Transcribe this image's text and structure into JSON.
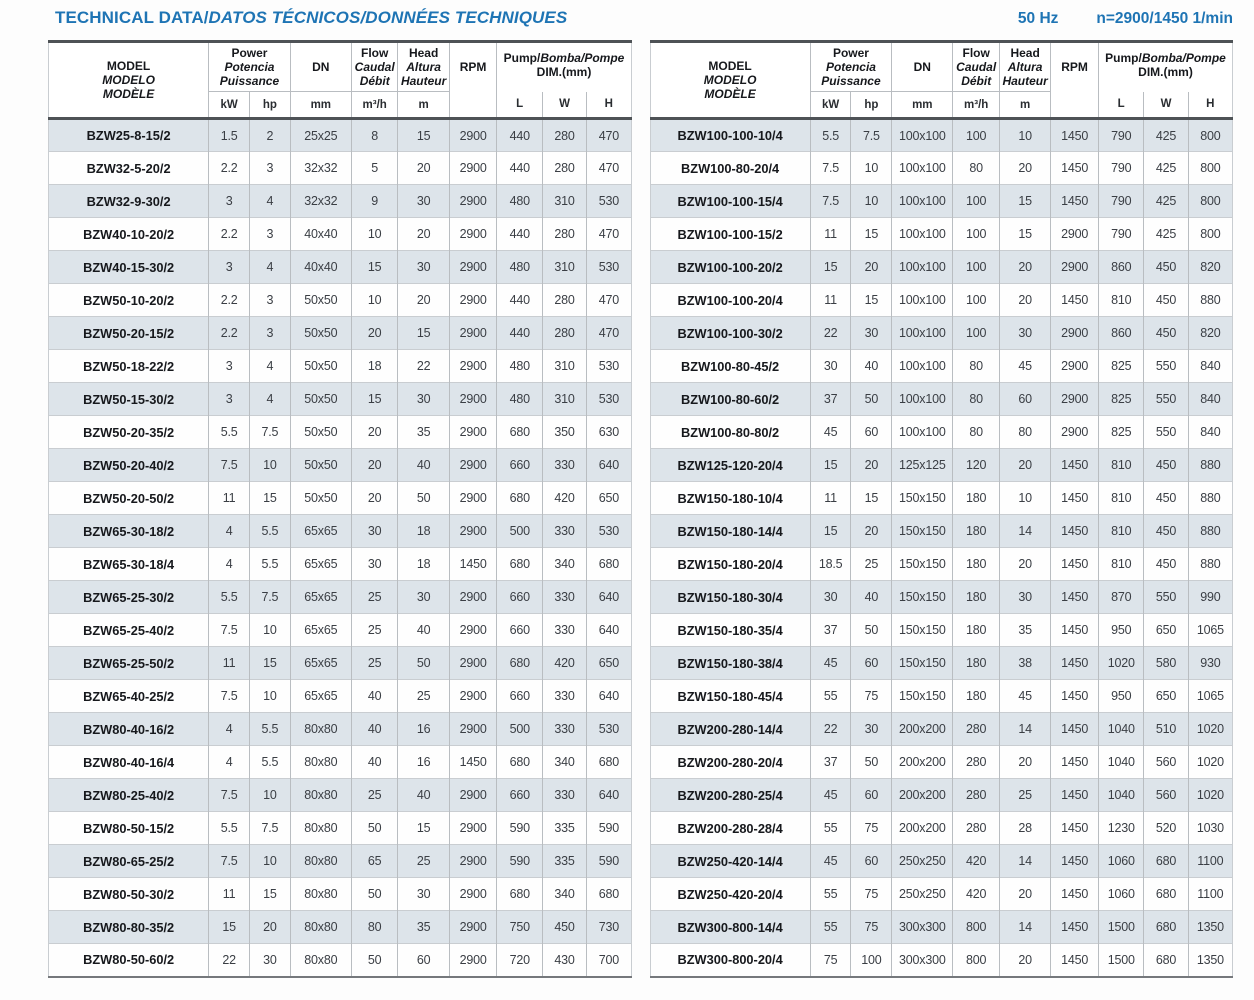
{
  "page": {
    "title_segments": [
      "TECHNICAL DATA/",
      "DATOS TÉCNICOS/",
      "DONNÉES TECHNIQUES"
    ],
    "frequency": "50 Hz",
    "speed": "n=2900/1450 1/min"
  },
  "colors": {
    "title_blue": "#1e74b4",
    "row_stripe": "#dde4ea",
    "header_border_dark": "#4e5256",
    "grid_line": "#b9bdc1"
  },
  "header": {
    "model": [
      "MODEL",
      "MODELO",
      "MODÈLE"
    ],
    "power": [
      "Power",
      "Potencia",
      "Puissance"
    ],
    "dn": "DN",
    "flow": [
      "Flow",
      "Caudal",
      "Débit"
    ],
    "head": [
      "Head",
      "Altura",
      "Hauteur"
    ],
    "rpm": "RPM",
    "pump_dim_segments": [
      "Pump/",
      "Bomba/",
      "Pompe"
    ],
    "pump_dim_line2": "DIM.(mm)",
    "units": {
      "kw": "kW",
      "hp": "hp",
      "dn": "mm",
      "flow": "m³/h",
      "head": "m",
      "l": "L",
      "w": "W",
      "h": "H"
    }
  },
  "tables": [
    {
      "rows": [
        [
          "BZW25-8-15/2",
          "1.5",
          "2",
          "25x25",
          "8",
          "15",
          "2900",
          "440",
          "280",
          "470"
        ],
        [
          "BZW32-5-20/2",
          "2.2",
          "3",
          "32x32",
          "5",
          "20",
          "2900",
          "440",
          "280",
          "470"
        ],
        [
          "BZW32-9-30/2",
          "3",
          "4",
          "32x32",
          "9",
          "30",
          "2900",
          "480",
          "310",
          "530"
        ],
        [
          "BZW40-10-20/2",
          "2.2",
          "3",
          "40x40",
          "10",
          "20",
          "2900",
          "440",
          "280",
          "470"
        ],
        [
          "BZW40-15-30/2",
          "3",
          "4",
          "40x40",
          "15",
          "30",
          "2900",
          "480",
          "310",
          "530"
        ],
        [
          "BZW50-10-20/2",
          "2.2",
          "3",
          "50x50",
          "10",
          "20",
          "2900",
          "440",
          "280",
          "470"
        ],
        [
          "BZW50-20-15/2",
          "2.2",
          "3",
          "50x50",
          "20",
          "15",
          "2900",
          "440",
          "280",
          "470"
        ],
        [
          "BZW50-18-22/2",
          "3",
          "4",
          "50x50",
          "18",
          "22",
          "2900",
          "480",
          "310",
          "530"
        ],
        [
          "BZW50-15-30/2",
          "3",
          "4",
          "50x50",
          "15",
          "30",
          "2900",
          "480",
          "310",
          "530"
        ],
        [
          "BZW50-20-35/2",
          "5.5",
          "7.5",
          "50x50",
          "20",
          "35",
          "2900",
          "680",
          "350",
          "630"
        ],
        [
          "BZW50-20-40/2",
          "7.5",
          "10",
          "50x50",
          "20",
          "40",
          "2900",
          "660",
          "330",
          "640"
        ],
        [
          "BZW50-20-50/2",
          "11",
          "15",
          "50x50",
          "20",
          "50",
          "2900",
          "680",
          "420",
          "650"
        ],
        [
          "BZW65-30-18/2",
          "4",
          "5.5",
          "65x65",
          "30",
          "18",
          "2900",
          "500",
          "330",
          "530"
        ],
        [
          "BZW65-30-18/4",
          "4",
          "5.5",
          "65x65",
          "30",
          "18",
          "1450",
          "680",
          "340",
          "680"
        ],
        [
          "BZW65-25-30/2",
          "5.5",
          "7.5",
          "65x65",
          "25",
          "30",
          "2900",
          "660",
          "330",
          "640"
        ],
        [
          "BZW65-25-40/2",
          "7.5",
          "10",
          "65x65",
          "25",
          "40",
          "2900",
          "660",
          "330",
          "640"
        ],
        [
          "BZW65-25-50/2",
          "11",
          "15",
          "65x65",
          "25",
          "50",
          "2900",
          "680",
          "420",
          "650"
        ],
        [
          "BZW65-40-25/2",
          "7.5",
          "10",
          "65x65",
          "40",
          "25",
          "2900",
          "660",
          "330",
          "640"
        ],
        [
          "BZW80-40-16/2",
          "4",
          "5.5",
          "80x80",
          "40",
          "16",
          "2900",
          "500",
          "330",
          "530"
        ],
        [
          "BZW80-40-16/4",
          "4",
          "5.5",
          "80x80",
          "40",
          "16",
          "1450",
          "680",
          "340",
          "680"
        ],
        [
          "BZW80-25-40/2",
          "7.5",
          "10",
          "80x80",
          "25",
          "40",
          "2900",
          "660",
          "330",
          "640"
        ],
        [
          "BZW80-50-15/2",
          "5.5",
          "7.5",
          "80x80",
          "50",
          "15",
          "2900",
          "590",
          "335",
          "590"
        ],
        [
          "BZW80-65-25/2",
          "7.5",
          "10",
          "80x80",
          "65",
          "25",
          "2900",
          "590",
          "335",
          "590"
        ],
        [
          "BZW80-50-30/2",
          "11",
          "15",
          "80x80",
          "50",
          "30",
          "2900",
          "680",
          "340",
          "680"
        ],
        [
          "BZW80-80-35/2",
          "15",
          "20",
          "80x80",
          "80",
          "35",
          "2900",
          "750",
          "450",
          "730"
        ],
        [
          "BZW80-50-60/2",
          "22",
          "30",
          "80x80",
          "50",
          "60",
          "2900",
          "720",
          "430",
          "700"
        ]
      ]
    },
    {
      "rows": [
        [
          "BZW100-100-10/4",
          "5.5",
          "7.5",
          "100x100",
          "100",
          "10",
          "1450",
          "790",
          "425",
          "800"
        ],
        [
          "BZW100-80-20/4",
          "7.5",
          "10",
          "100x100",
          "80",
          "20",
          "1450",
          "790",
          "425",
          "800"
        ],
        [
          "BZW100-100-15/4",
          "7.5",
          "10",
          "100x100",
          "100",
          "15",
          "1450",
          "790",
          "425",
          "800"
        ],
        [
          "BZW100-100-15/2",
          "11",
          "15",
          "100x100",
          "100",
          "15",
          "2900",
          "790",
          "425",
          "800"
        ],
        [
          "BZW100-100-20/2",
          "15",
          "20",
          "100x100",
          "100",
          "20",
          "2900",
          "860",
          "450",
          "820"
        ],
        [
          "BZW100-100-20/4",
          "11",
          "15",
          "100x100",
          "100",
          "20",
          "1450",
          "810",
          "450",
          "880"
        ],
        [
          "BZW100-100-30/2",
          "22",
          "30",
          "100x100",
          "100",
          "30",
          "2900",
          "860",
          "450",
          "820"
        ],
        [
          "BZW100-80-45/2",
          "30",
          "40",
          "100x100",
          "80",
          "45",
          "2900",
          "825",
          "550",
          "840"
        ],
        [
          "BZW100-80-60/2",
          "37",
          "50",
          "100x100",
          "80",
          "60",
          "2900",
          "825",
          "550",
          "840"
        ],
        [
          "BZW100-80-80/2",
          "45",
          "60",
          "100x100",
          "80",
          "80",
          "2900",
          "825",
          "550",
          "840"
        ],
        [
          "BZW125-120-20/4",
          "15",
          "20",
          "125x125",
          "120",
          "20",
          "1450",
          "810",
          "450",
          "880"
        ],
        [
          "BZW150-180-10/4",
          "11",
          "15",
          "150x150",
          "180",
          "10",
          "1450",
          "810",
          "450",
          "880"
        ],
        [
          "BZW150-180-14/4",
          "15",
          "20",
          "150x150",
          "180",
          "14",
          "1450",
          "810",
          "450",
          "880"
        ],
        [
          "BZW150-180-20/4",
          "18.5",
          "25",
          "150x150",
          "180",
          "20",
          "1450",
          "810",
          "450",
          "880"
        ],
        [
          "BZW150-180-30/4",
          "30",
          "40",
          "150x150",
          "180",
          "30",
          "1450",
          "870",
          "550",
          "990"
        ],
        [
          "BZW150-180-35/4",
          "37",
          "50",
          "150x150",
          "180",
          "35",
          "1450",
          "950",
          "650",
          "1065"
        ],
        [
          "BZW150-180-38/4",
          "45",
          "60",
          "150x150",
          "180",
          "38",
          "1450",
          "1020",
          "580",
          "930"
        ],
        [
          "BZW150-180-45/4",
          "55",
          "75",
          "150x150",
          "180",
          "45",
          "1450",
          "950",
          "650",
          "1065"
        ],
        [
          "BZW200-280-14/4",
          "22",
          "30",
          "200x200",
          "280",
          "14",
          "1450",
          "1040",
          "510",
          "1020"
        ],
        [
          "BZW200-280-20/4",
          "37",
          "50",
          "200x200",
          "280",
          "20",
          "1450",
          "1040",
          "560",
          "1020"
        ],
        [
          "BZW200-280-25/4",
          "45",
          "60",
          "200x200",
          "280",
          "25",
          "1450",
          "1040",
          "560",
          "1020"
        ],
        [
          "BZW200-280-28/4",
          "55",
          "75",
          "200x200",
          "280",
          "28",
          "1450",
          "1230",
          "520",
          "1030"
        ],
        [
          "BZW250-420-14/4",
          "45",
          "60",
          "250x250",
          "420",
          "14",
          "1450",
          "1060",
          "680",
          "1100"
        ],
        [
          "BZW250-420-20/4",
          "55",
          "75",
          "250x250",
          "420",
          "20",
          "1450",
          "1060",
          "680",
          "1100"
        ],
        [
          "BZW300-800-14/4",
          "55",
          "75",
          "300x300",
          "800",
          "14",
          "1450",
          "1500",
          "680",
          "1350"
        ],
        [
          "BZW300-800-20/4",
          "75",
          "100",
          "300x300",
          "800",
          "20",
          "1450",
          "1500",
          "680",
          "1350"
        ]
      ]
    }
  ]
}
